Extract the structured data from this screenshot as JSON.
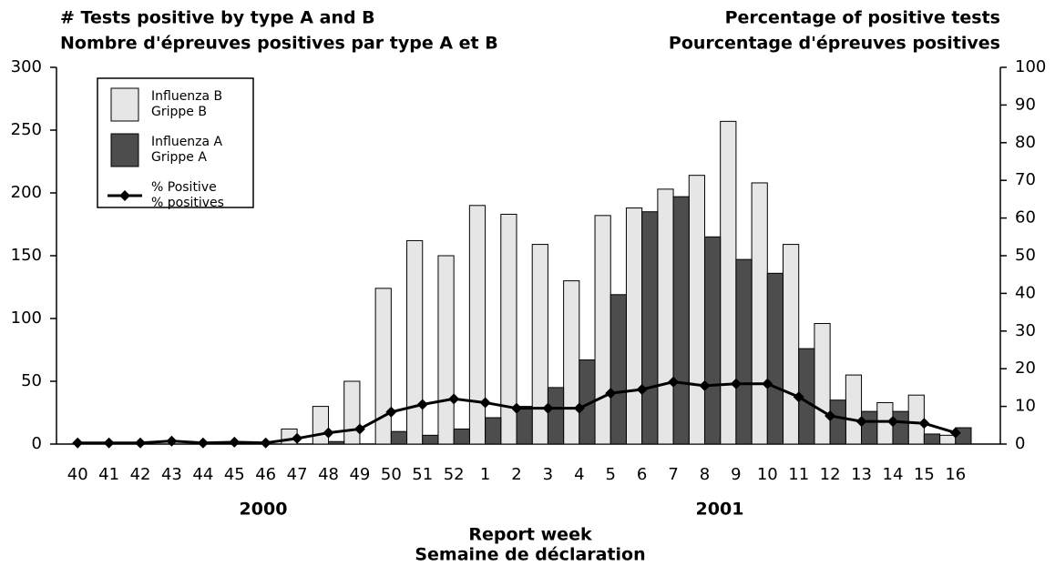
{
  "chart_data": {
    "type": "bar",
    "title_left": [
      "# Tests positive by type A and B",
      "Nombre d'épreuves positives par type A et B"
    ],
    "title_right": [
      "Percentage of positive tests",
      "Pourcentage d'épreuves positives"
    ],
    "x_label": [
      "Report week",
      "Semaine de déclaration"
    ],
    "year_labels": [
      "2000",
      "2001"
    ],
    "categories": [
      "40",
      "41",
      "42",
      "43",
      "44",
      "45",
      "46",
      "47",
      "48",
      "49",
      "50",
      "51",
      "52",
      "1",
      "2",
      "3",
      "4",
      "5",
      "6",
      "7",
      "8",
      "9",
      "10",
      "11",
      "12",
      "13",
      "14",
      "15",
      "16"
    ],
    "series": [
      {
        "name": [
          "Influenza B",
          "Grippe B"
        ],
        "color": "#e6e6e6",
        "type": "bar",
        "values": [
          0,
          0,
          0,
          0,
          0,
          0,
          0,
          12,
          30,
          50,
          124,
          162,
          150,
          190,
          183,
          159,
          130,
          182,
          188,
          203,
          214,
          257,
          208,
          159,
          96,
          55,
          33,
          39,
          7
        ]
      },
      {
        "name": [
          "Influenza A",
          "Grippe A"
        ],
        "color": "#4d4d4d",
        "type": "bar",
        "values": [
          0,
          0,
          0,
          0,
          0,
          0,
          0,
          0,
          2,
          0,
          10,
          7,
          12,
          21,
          30,
          45,
          67,
          119,
          185,
          197,
          165,
          147,
          136,
          76,
          35,
          26,
          26,
          8,
          13
        ]
      },
      {
        "name": [
          "% Positive",
          "% positives"
        ],
        "color": "#000000",
        "type": "line",
        "axis": "y2",
        "values": [
          0.3,
          0.3,
          0.3,
          0.8,
          0.3,
          0.5,
          0.3,
          1.5,
          3,
          4,
          8.5,
          10.5,
          12,
          11,
          9.5,
          9.5,
          9.5,
          13.5,
          14.5,
          16.5,
          15.5,
          16,
          16,
          12.5,
          7.5,
          6,
          6,
          5.5,
          3
        ]
      }
    ],
    "ylim": [
      0,
      300
    ],
    "yticks": [
      0,
      50,
      100,
      150,
      200,
      250,
      300
    ],
    "y2lim": [
      0,
      100
    ],
    "y2ticks": [
      0,
      10,
      20,
      30,
      40,
      50,
      60,
      70,
      80,
      90,
      100
    ],
    "grid": false
  }
}
